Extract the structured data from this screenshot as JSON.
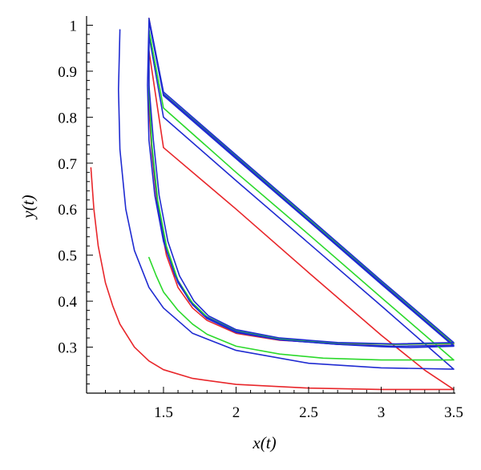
{
  "chart_data": {
    "type": "line",
    "xlabel": "x(t)",
    "ylabel": "y(t)",
    "xlim": [
      0.97,
      3.5
    ],
    "ylim": [
      0.2,
      1.02
    ],
    "xticks": [
      {
        "value": 1.5,
        "label": "1.5"
      },
      {
        "value": 2,
        "label": "2"
      },
      {
        "value": 2.5,
        "label": "2.5"
      },
      {
        "value": 3,
        "label": "3"
      },
      {
        "value": 3.5,
        "label": "3.5"
      }
    ],
    "yticks": [
      {
        "value": 0.3,
        "label": "0.3"
      },
      {
        "value": 0.4,
        "label": "0.4"
      },
      {
        "value": 0.5,
        "label": "0.5"
      },
      {
        "value": 0.6,
        "label": "0.6"
      },
      {
        "value": 0.7,
        "label": "0.7"
      },
      {
        "value": 0.8,
        "label": "0.8"
      },
      {
        "value": 0.9,
        "label": "0.9"
      },
      {
        "value": 1,
        "label": "1"
      }
    ],
    "grid": false,
    "series": [
      {
        "color": "#e8262a",
        "points": [
          [
            1.0,
            0.69
          ],
          [
            1.02,
            0.6
          ],
          [
            1.05,
            0.52
          ],
          [
            1.1,
            0.44
          ],
          [
            1.15,
            0.39
          ],
          [
            1.2,
            0.35
          ],
          [
            1.3,
            0.3
          ],
          [
            1.4,
            0.27
          ],
          [
            1.5,
            0.251
          ],
          [
            1.7,
            0.232
          ],
          [
            2.0,
            0.219
          ],
          [
            2.5,
            0.211
          ],
          [
            3.0,
            0.208
          ],
          [
            3.5,
            0.208
          ],
          [
            3.3,
            0.25
          ],
          [
            3.0,
            0.326
          ],
          [
            2.5,
            0.462
          ],
          [
            2.0,
            0.6
          ],
          [
            1.5,
            0.734
          ],
          [
            1.4,
            0.945
          ],
          [
            1.4,
            0.82
          ],
          [
            1.42,
            0.72
          ],
          [
            1.46,
            0.6
          ],
          [
            1.52,
            0.5
          ],
          [
            1.6,
            0.43
          ],
          [
            1.7,
            0.385
          ],
          [
            1.8,
            0.358
          ],
          [
            2.0,
            0.33
          ],
          [
            2.3,
            0.315
          ],
          [
            2.7,
            0.308
          ],
          [
            3.1,
            0.306
          ],
          [
            3.5,
            0.307
          ],
          [
            3.0,
            0.444
          ],
          [
            2.5,
            0.58
          ],
          [
            2.0,
            0.716
          ],
          [
            1.5,
            0.85
          ],
          [
            1.4,
            1.015
          ]
        ]
      },
      {
        "color": "#1f2bd1",
        "points": [
          [
            1.2,
            0.99
          ],
          [
            1.19,
            0.86
          ],
          [
            1.2,
            0.73
          ],
          [
            1.24,
            0.6
          ],
          [
            1.3,
            0.51
          ],
          [
            1.4,
            0.43
          ],
          [
            1.5,
            0.385
          ],
          [
            1.7,
            0.33
          ],
          [
            2.0,
            0.293
          ],
          [
            2.5,
            0.265
          ],
          [
            3.0,
            0.255
          ],
          [
            3.5,
            0.252
          ],
          [
            3.0,
            0.39
          ],
          [
            2.5,
            0.526
          ],
          [
            2.0,
            0.662
          ],
          [
            1.5,
            0.8
          ],
          [
            1.4,
            0.978
          ],
          [
            1.4,
            0.85
          ],
          [
            1.42,
            0.73
          ],
          [
            1.46,
            0.61
          ],
          [
            1.52,
            0.51
          ],
          [
            1.6,
            0.44
          ],
          [
            1.7,
            0.392
          ],
          [
            1.8,
            0.362
          ],
          [
            2.0,
            0.332
          ],
          [
            2.3,
            0.316
          ],
          [
            2.7,
            0.306
          ],
          [
            3.0,
            0.301
          ],
          [
            3.2,
            0.299
          ],
          [
            3.5,
            0.302
          ],
          [
            3.0,
            0.437
          ],
          [
            2.5,
            0.574
          ],
          [
            2.0,
            0.71
          ],
          [
            1.5,
            0.847
          ],
          [
            1.4,
            1.01
          ]
        ]
      },
      {
        "color": "#2bd92b",
        "points": [
          [
            1.4,
            0.495
          ],
          [
            1.45,
            0.455
          ],
          [
            1.5,
            0.42
          ],
          [
            1.6,
            0.38
          ],
          [
            1.7,
            0.35
          ],
          [
            1.8,
            0.328
          ],
          [
            2.0,
            0.302
          ],
          [
            2.3,
            0.285
          ],
          [
            2.6,
            0.276
          ],
          [
            3.0,
            0.272
          ],
          [
            3.5,
            0.272
          ],
          [
            3.0,
            0.408
          ],
          [
            2.5,
            0.545
          ],
          [
            2.0,
            0.68
          ],
          [
            1.5,
            0.82
          ],
          [
            1.4,
            0.99
          ],
          [
            1.4,
            0.86
          ],
          [
            1.42,
            0.74
          ],
          [
            1.46,
            0.62
          ],
          [
            1.52,
            0.52
          ],
          [
            1.6,
            0.445
          ],
          [
            1.7,
            0.396
          ],
          [
            1.8,
            0.366
          ],
          [
            2.0,
            0.336
          ],
          [
            2.3,
            0.318
          ],
          [
            2.7,
            0.309
          ],
          [
            3.1,
            0.306
          ],
          [
            3.5,
            0.308
          ],
          [
            3.0,
            0.443
          ],
          [
            2.5,
            0.579
          ],
          [
            2.0,
            0.715
          ],
          [
            1.5,
            0.851
          ],
          [
            1.4,
            1.012
          ]
        ]
      },
      {
        "color": "#1f2bd1",
        "points": [
          [
            1.4,
            1.008
          ],
          [
            1.39,
            0.87
          ],
          [
            1.4,
            0.75
          ],
          [
            1.44,
            0.63
          ],
          [
            1.5,
            0.53
          ],
          [
            1.58,
            0.455
          ],
          [
            1.68,
            0.4
          ],
          [
            1.78,
            0.368
          ],
          [
            2.0,
            0.334
          ],
          [
            2.3,
            0.316
          ],
          [
            2.7,
            0.306
          ],
          [
            3.1,
            0.302
          ],
          [
            3.5,
            0.304
          ],
          [
            3.0,
            0.44
          ],
          [
            2.5,
            0.576
          ],
          [
            2.0,
            0.713
          ],
          [
            1.5,
            0.85
          ],
          [
            1.4,
            1.01
          ],
          [
            1.4,
            0.87
          ],
          [
            1.43,
            0.75
          ],
          [
            1.47,
            0.63
          ],
          [
            1.53,
            0.53
          ],
          [
            1.61,
            0.455
          ],
          [
            1.71,
            0.4
          ],
          [
            1.81,
            0.368
          ],
          [
            2.0,
            0.338
          ],
          [
            2.3,
            0.32
          ],
          [
            2.7,
            0.31
          ],
          [
            3.1,
            0.307
          ],
          [
            3.5,
            0.31
          ],
          [
            3.0,
            0.445
          ],
          [
            2.5,
            0.582
          ],
          [
            2.0,
            0.718
          ],
          [
            1.5,
            0.855
          ],
          [
            1.4,
            1.015
          ]
        ]
      }
    ]
  }
}
